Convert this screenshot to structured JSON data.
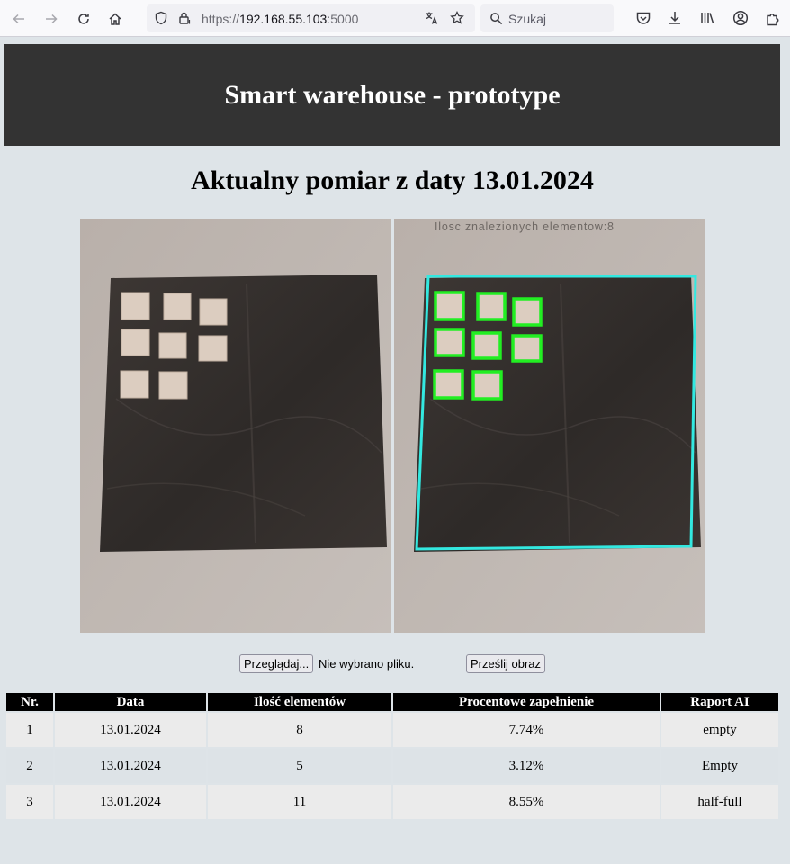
{
  "browser": {
    "url_scheme": "https://",
    "url_host": "192.168.55.103",
    "url_port": ":5000",
    "search_placeholder": "Szukaj"
  },
  "header": {
    "title": "Smart warehouse - prototype"
  },
  "main": {
    "measurement_title": "Aktualny pomiar z daty 13.01.2024",
    "processed_image_overlay": "Ilosc znalezionych elementow:8"
  },
  "upload": {
    "browse_label": "Przeglądaj...",
    "no_file_label": "Nie wybrano pliku.",
    "submit_label": "Prześlij obraz"
  },
  "table": {
    "headers": [
      "Nr.",
      "Data",
      "Ilość elementów",
      "Procentowe zapełnienie",
      "Raport AI"
    ],
    "rows": [
      [
        "1",
        "13.01.2024",
        "8",
        "7.74%",
        "empty"
      ],
      [
        "2",
        "13.01.2024",
        "5",
        "3.12%",
        "Empty"
      ],
      [
        "3",
        "13.01.2024",
        "11",
        "8.55%",
        "half-full"
      ]
    ]
  },
  "colors": {
    "header_bg": "#333333",
    "page_bg": "#dee4e8",
    "detect_box": "#22ee22",
    "bin_outline": "#33e8e0"
  }
}
